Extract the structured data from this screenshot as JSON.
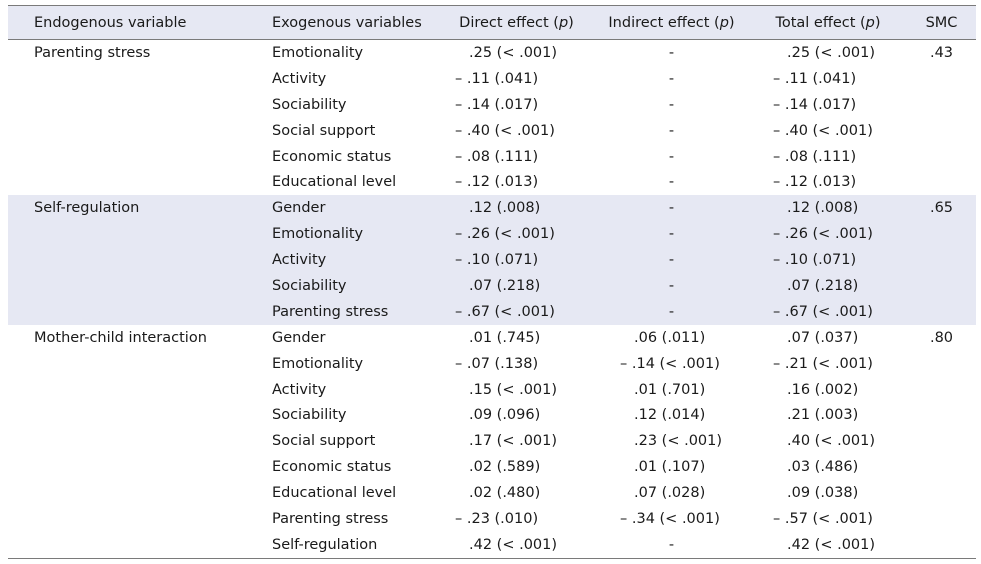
{
  "headers": {
    "endogenous": "Endogenous variable",
    "exogenous": "Exogenous variables",
    "direct": "Direct effect (",
    "indirect": "Indirect effect (",
    "total": "Total effect (",
    "p": "p",
    "close": ")",
    "smc": "SMC"
  },
  "groups": [
    {
      "name": "Parenting stress",
      "smc": ".43",
      "rows": [
        {
          "exo": "Emotionality",
          "direct": ".25 (< .001)",
          "indirect": "-",
          "total": ".25 (< .001)"
        },
        {
          "exo": "Activity",
          "direct": "– .11 (.041)",
          "indirect": "-",
          "total": "– .11 (.041)"
        },
        {
          "exo": "Sociability",
          "direct": "– .14 (.017)",
          "indirect": "-",
          "total": "– .14 (.017)"
        },
        {
          "exo": "Social support",
          "direct": "– .40 (< .001)",
          "indirect": "-",
          "total": "– .40 (< .001)"
        },
        {
          "exo": "Economic status",
          "direct": "– .08 (.111)",
          "indirect": "-",
          "total": "– .08 (.111)"
        },
        {
          "exo": "Educational level",
          "direct": "– .12 (.013)",
          "indirect": "-",
          "total": "– .12 (.013)"
        }
      ]
    },
    {
      "name": "Self-regulation",
      "smc": ".65",
      "rows": [
        {
          "exo": "Gender",
          "direct": ".12 (.008)",
          "indirect": "-",
          "total": ".12 (.008)"
        },
        {
          "exo": "Emotionality",
          "direct": "– .26 (< .001)",
          "indirect": "-",
          "total": "– .26 (< .001)"
        },
        {
          "exo": "Activity",
          "direct": "– .10 (.071)",
          "indirect": "-",
          "total": "– .10 (.071)"
        },
        {
          "exo": "Sociability",
          "direct": ".07 (.218)",
          "indirect": "-",
          "total": ".07 (.218)"
        },
        {
          "exo": "Parenting stress",
          "direct": "– .67 (< .001)",
          "indirect": "-",
          "total": "– .67 (< .001)"
        }
      ]
    },
    {
      "name": "Mother-child interaction",
      "smc": ".80",
      "rows": [
        {
          "exo": "Gender",
          "direct": ".01 (.745)",
          "indirect": ".06 (.011)",
          "total": ".07 (.037)"
        },
        {
          "exo": "Emotionality",
          "direct": "– .07 (.138)",
          "indirect": "– .14 (< .001)",
          "total": "– .21 (< .001)"
        },
        {
          "exo": "Activity",
          "direct": ".15 (< .001)",
          "indirect": ".01 (.701)",
          "total": ".16 (.002)"
        },
        {
          "exo": "Sociability",
          "direct": ".09 (.096)",
          "indirect": ".12 (.014)",
          "total": ".21 (.003)"
        },
        {
          "exo": "Social support",
          "direct": ".17 (< .001)",
          "indirect": ".23 (< .001)",
          "total": ".40 (< .001)"
        },
        {
          "exo": "Economic status",
          "direct": ".02 (.589)",
          "indirect": ".01 (.107)",
          "total": ".03 (.486)"
        },
        {
          "exo": "Educational level",
          "direct": ".02 (.480)",
          "indirect": ".07 (.028)",
          "total": ".09 (.038)"
        },
        {
          "exo": "Parenting  stress",
          "direct": "– .23 (.010)",
          "indirect": "– .34 (< .001)",
          "total": "– .57 (< .001)"
        },
        {
          "exo": "Self-regulation",
          "direct": ".42 (< .001)",
          "indirect": "-",
          "total": ".42 (< .001)"
        }
      ]
    }
  ]
}
